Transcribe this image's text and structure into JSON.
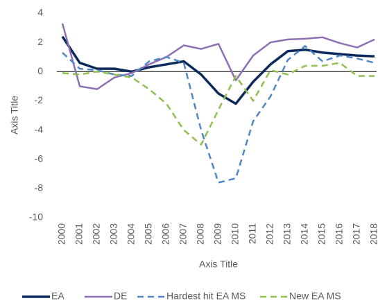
{
  "chart_data": {
    "type": "line",
    "x_label": "Axis Title",
    "y_label": "Axis Title",
    "categories": [
      "2000",
      "2001",
      "2002",
      "2003",
      "2004",
      "2005",
      "2006",
      "2007",
      "2008",
      "2009",
      "2010",
      "2011",
      "2012",
      "2013",
      "2014",
      "2015",
      "2016",
      "2017",
      "2018"
    ],
    "ylim": [
      -10,
      4
    ],
    "yticks": [
      -10,
      -8,
      -6,
      -4,
      -2,
      0,
      2,
      4
    ],
    "legend": "bottom",
    "series": [
      {
        "name": "EA",
        "color": "#0b2a5b",
        "line_style": "solid",
        "values": [
          2.4,
          0.6,
          0.2,
          0.2,
          0.0,
          0.3,
          0.5,
          0.7,
          -0.2,
          -1.5,
          -2.2,
          -0.7,
          0.5,
          1.4,
          1.5,
          1.3,
          1.2,
          1.1,
          1.05
        ]
      },
      {
        "name": "DE",
        "color": "#8e6fb5",
        "line_style": "solid",
        "values": [
          3.3,
          -1.0,
          -1.2,
          -0.4,
          -0.1,
          0.5,
          1.0,
          1.8,
          1.55,
          1.9,
          -0.6,
          1.1,
          2.0,
          2.2,
          2.25,
          2.35,
          1.95,
          1.65,
          2.2
        ]
      },
      {
        "name": "Hardest hit EA MS",
        "color": "#4f86c6",
        "line_style": "dashed",
        "values": [
          1.3,
          0.2,
          0.1,
          -0.2,
          -0.3,
          0.7,
          1.0,
          0.6,
          -4.0,
          -7.6,
          -7.3,
          -3.4,
          -1.7,
          0.8,
          1.75,
          0.7,
          1.1,
          0.9,
          0.6
        ]
      },
      {
        "name": "New EA MS",
        "color": "#8fbf4d",
        "line_style": "dashed",
        "values": [
          -0.1,
          -0.2,
          0.0,
          -0.2,
          -0.4,
          -1.2,
          -2.2,
          -4.0,
          -5.0,
          -2.6,
          -0.3,
          -2.0,
          0.1,
          -0.2,
          0.4,
          0.4,
          0.6,
          -0.3,
          -0.3
        ]
      }
    ]
  }
}
